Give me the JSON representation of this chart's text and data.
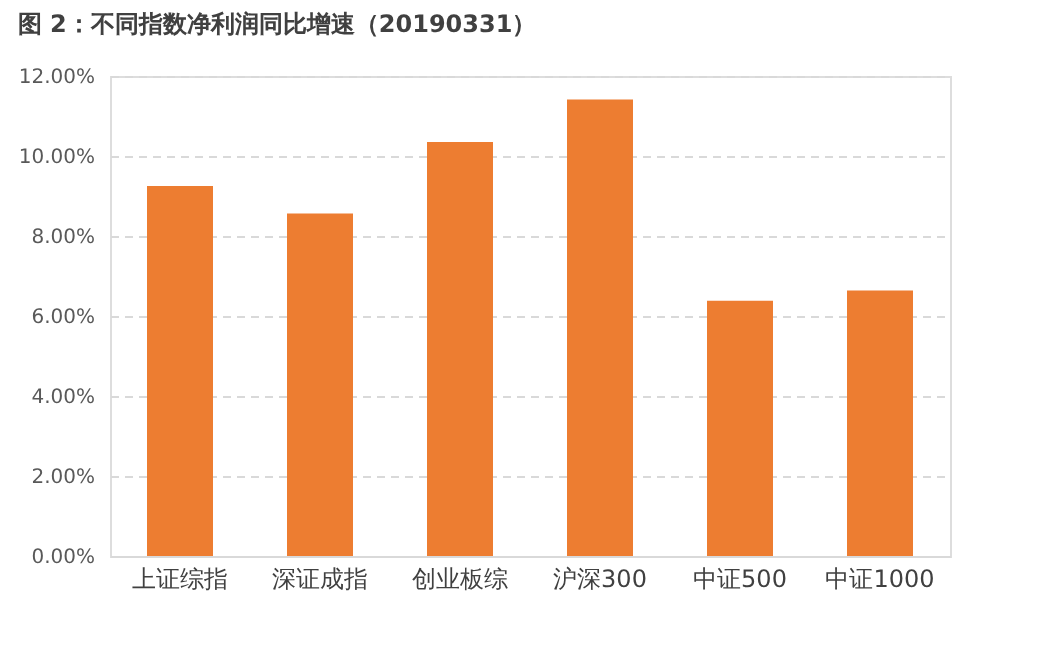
{
  "chart_data": {
    "type": "bar",
    "title": "图 2：不同指数净利润同比增速（20190331）",
    "categories": [
      "上证综指",
      "深证成指",
      "创业板综",
      "沪深300",
      "中证500",
      "中证1000"
    ],
    "values": [
      9.25,
      8.56,
      10.35,
      11.41,
      6.38,
      6.64
    ],
    "color": "#ed7d31",
    "ylim": [
      0,
      12
    ],
    "yticks": [
      {
        "value": 0,
        "label": "0.00%"
      },
      {
        "value": 2,
        "label": "2.00%"
      },
      {
        "value": 4,
        "label": "4.00%"
      },
      {
        "value": 6,
        "label": "6.00%"
      },
      {
        "value": 8,
        "label": "8.00%"
      },
      {
        "value": 10,
        "label": "10.00%"
      },
      {
        "value": 12,
        "label": "12.00%"
      }
    ],
    "grid": "y",
    "line_style": "dashed"
  }
}
